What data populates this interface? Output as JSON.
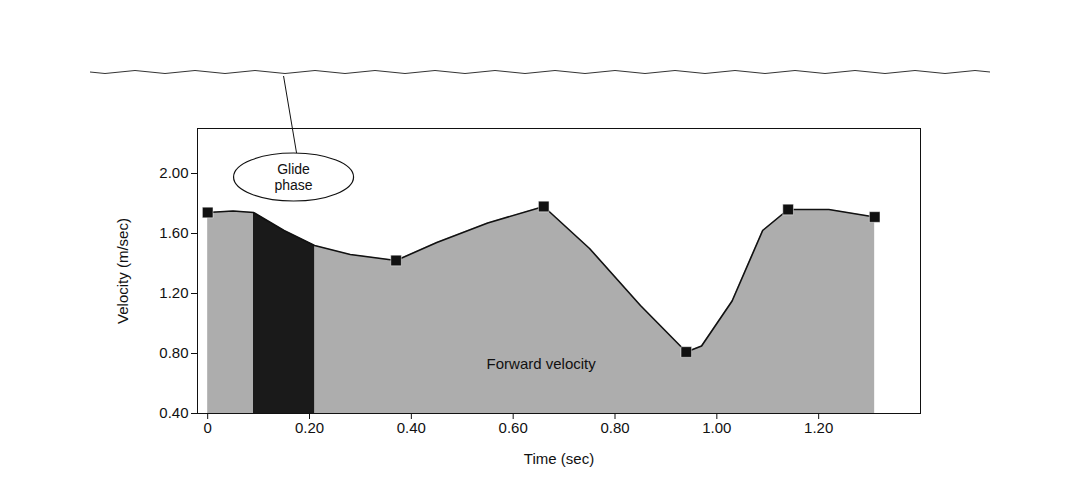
{
  "chart_data": {
    "type": "area",
    "x_label": "Time (sec)",
    "y_label": "Velocity (m/sec)",
    "xlim": [
      -0.02,
      1.4
    ],
    "ylim": [
      0.4,
      2.3
    ],
    "xticks": [
      0,
      {
        "value": 0.2,
        "label": "0.20"
      },
      {
        "value": 0.4,
        "label": "0.40"
      },
      {
        "value": 0.6,
        "label": "0.60"
      },
      {
        "value": 0.8,
        "label": "0.80"
      },
      {
        "value": 1.0,
        "label": "1.00"
      },
      {
        "value": 1.2,
        "label": "1.20"
      }
    ],
    "yticks": [
      {
        "value": 0.4,
        "label": "0.40"
      },
      {
        "value": 0.8,
        "label": "0.80"
      },
      {
        "value": 1.2,
        "label": "1.20"
      },
      {
        "value": 1.6,
        "label": "1.60"
      },
      {
        "value": 2.0,
        "label": "2.00"
      }
    ],
    "series": [
      {
        "name": "Forward velocity",
        "color": "#adadad",
        "x": [
          0,
          0.05,
          0.09,
          0.15,
          0.21,
          0.28,
          0.37,
          0.45,
          0.55,
          0.66,
          0.75,
          0.85,
          0.94,
          0.97,
          1.03,
          1.09,
          1.14,
          1.22,
          1.31
        ],
        "values": [
          1.74,
          1.75,
          1.74,
          1.62,
          1.52,
          1.46,
          1.42,
          1.54,
          1.67,
          1.78,
          1.5,
          1.12,
          0.81,
          0.85,
          1.15,
          1.62,
          1.76,
          1.76,
          1.71
        ]
      }
    ],
    "markers": {
      "marker": "square",
      "color": "#111111",
      "x": [
        0,
        0.37,
        0.66,
        0.94,
        1.14,
        1.31
      ],
      "values": [
        1.74,
        1.42,
        1.78,
        0.81,
        1.76,
        1.71
      ]
    },
    "annotations": [
      {
        "text": "Glide phase",
        "x_start": 0.09,
        "x_end": 0.21,
        "color": "#1a1a1a"
      }
    ]
  }
}
